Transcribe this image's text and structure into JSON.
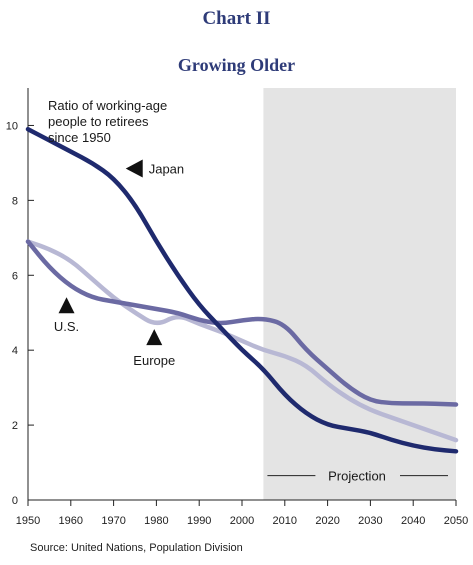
{
  "chart_number": "Chart II",
  "chart_title": "Growing Older",
  "source": "Source: United Nations, Population Division",
  "chart_data": {
    "type": "line",
    "title": "Growing Older",
    "annotation": [
      "Ratio of working-age",
      "people to retirees",
      "since 1950"
    ],
    "projection_label": "Projection",
    "projection_start": 2005,
    "xlim": [
      1950,
      2050
    ],
    "ylim": [
      0,
      11
    ],
    "x_ticks": [
      1950,
      1960,
      1970,
      1980,
      1990,
      2000,
      2010,
      2020,
      2030,
      2040,
      2050
    ],
    "y_ticks": [
      0,
      2,
      4,
      6,
      8,
      10
    ],
    "series": [
      {
        "name": "Japan",
        "color": "#1f2a6e",
        "x": [
          1950,
          1955,
          1960,
          1965,
          1970,
          1975,
          1980,
          1985,
          1990,
          1995,
          2000,
          2005,
          2010,
          2015,
          2020,
          2025,
          2030,
          2035,
          2040,
          2045,
          2050
        ],
        "values": [
          9.9,
          9.6,
          9.3,
          9.0,
          8.6,
          7.9,
          6.9,
          6.0,
          5.2,
          4.6,
          4.0,
          3.5,
          2.8,
          2.3,
          2.0,
          1.9,
          1.8,
          1.6,
          1.45,
          1.35,
          1.3
        ]
      },
      {
        "name": "U.S.",
        "color": "#6b6aa3",
        "x": [
          1950,
          1955,
          1960,
          1965,
          1970,
          1975,
          1980,
          1985,
          1990,
          1995,
          2000,
          2005,
          2010,
          2015,
          2020,
          2025,
          2030,
          2035,
          2040,
          2045,
          2050
        ],
        "values": [
          6.9,
          6.2,
          5.7,
          5.4,
          5.3,
          5.2,
          5.1,
          5.0,
          4.8,
          4.7,
          4.8,
          4.85,
          4.7,
          4.0,
          3.5,
          3.0,
          2.65,
          2.58,
          2.58,
          2.57,
          2.55
        ]
      },
      {
        "name": "Europe",
        "color": "#b8b8d4",
        "x": [
          1950,
          1955,
          1960,
          1965,
          1970,
          1975,
          1980,
          1985,
          1990,
          1995,
          2000,
          2005,
          2010,
          2015,
          2020,
          2025,
          2030,
          2035,
          2040,
          2045,
          2050
        ],
        "values": [
          6.9,
          6.7,
          6.4,
          5.9,
          5.4,
          5.0,
          4.65,
          4.95,
          4.7,
          4.5,
          4.25,
          4.0,
          3.85,
          3.6,
          3.1,
          2.7,
          2.4,
          2.2,
          2.0,
          1.8,
          1.6
        ]
      }
    ]
  }
}
